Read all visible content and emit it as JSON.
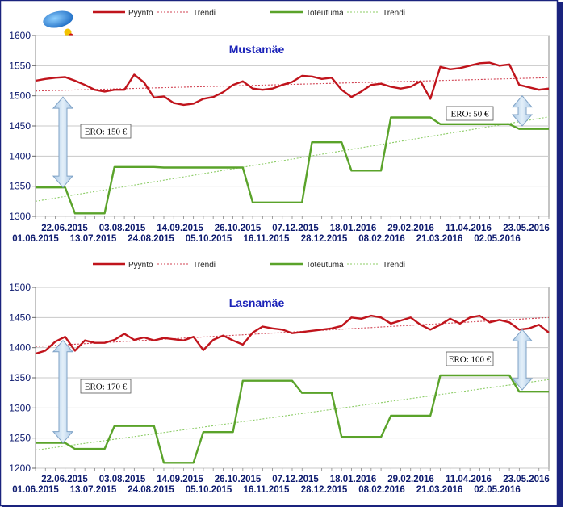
{
  "chart_data": [
    {
      "type": "line",
      "title": "Mustamäe",
      "ylim": [
        1300,
        1600
      ],
      "yticks": [
        "1300",
        "1350",
        "1400",
        "1450",
        "1500",
        "1550",
        "1600"
      ],
      "dates_upper": [
        "22.06.2015",
        "03.08.2015",
        "14.09.2015",
        "26.10.2015",
        "07.12.2015",
        "18.01.2016",
        "29.02.2016",
        "11.04.2016",
        "23.05.2016"
      ],
      "dates_lower": [
        "01.06.2015",
        "13.07.2015",
        "24.08.2015",
        "05.10.2015",
        "16.11.2015",
        "28.12.2015",
        "08.02.2016",
        "21.03.2016",
        "02.05.2016"
      ],
      "legend": {
        "pyynto": "Pyyntö",
        "trendi1": "Trendi",
        "toteutuma": "Toteutuma",
        "trendi2": "Trendi"
      },
      "colors": {
        "pyynto": "#c0141c",
        "trendi1": "#d04050",
        "toteutuma": "#5aa32a",
        "trendi2": "#8ccc66"
      },
      "series": [
        {
          "key": "pyynto",
          "values": [
            1525,
            1528,
            1530,
            1531,
            1525,
            1518,
            1510,
            1507,
            1510,
            1510,
            1535,
            1522,
            1497,
            1499,
            1488,
            1485,
            1487,
            1495,
            1498,
            1506,
            1518,
            1524,
            1512,
            1510,
            1512,
            1518,
            1523,
            1533,
            1532,
            1528,
            1530,
            1510,
            1498,
            1507,
            1518,
            1520,
            1515,
            1512,
            1515,
            1524,
            1495,
            1548,
            1544,
            1546,
            1550,
            1554,
            1555,
            1550,
            1552,
            1518,
            1514,
            1510,
            1512
          ]
        },
        {
          "key": "toteutuma",
          "values": [
            1348,
            1348,
            1348,
            1348,
            1305,
            1305,
            1305,
            1305,
            1382,
            1382,
            1382,
            1382,
            1382,
            1381,
            1381,
            1381,
            1381,
            1381,
            1381,
            1381,
            1381,
            1381,
            1323,
            1323,
            1323,
            1323,
            1323,
            1323,
            1423,
            1423,
            1423,
            1423,
            1376,
            1376,
            1376,
            1376,
            1464,
            1464,
            1464,
            1464,
            1464,
            1453,
            1453,
            1453,
            1453,
            1453,
            1453,
            1453,
            1453,
            1445,
            1445,
            1445,
            1445
          ]
        }
      ],
      "trends": [
        {
          "key": "trendi1",
          "start": 1508,
          "end": 1530
        },
        {
          "key": "trendi2",
          "start": 1325,
          "end": 1465
        }
      ],
      "annotations": [
        {
          "text": "ERO: 150 €",
          "top": 1498,
          "bottom": 1348,
          "at": 2
        },
        {
          "text": "ERO: 50 €",
          "top": 1500,
          "bottom": 1450,
          "at": 49
        }
      ]
    },
    {
      "type": "line",
      "title": "Lasnamäe",
      "ylim": [
        1200,
        1500
      ],
      "yticks": [
        "1200",
        "1250",
        "1300",
        "1350",
        "1400",
        "1450",
        "1500"
      ],
      "dates_upper": [
        "22.06.2015",
        "03.08.2015",
        "14.09.2015",
        "26.10.2015",
        "07.12.2015",
        "18.01.2016",
        "29.02.2016",
        "11.04.2016",
        "23.05.2016"
      ],
      "dates_lower": [
        "01.06.2015",
        "13.07.2015",
        "24.08.2015",
        "05.10.2015",
        "16.11.2015",
        "28.12.2015",
        "08.02.2016",
        "21.03.2016",
        "02.05.2016"
      ],
      "legend": {
        "pyynto": "Pyyntö",
        "trendi1": "Trendi",
        "toteutuma": "Toteutuma",
        "trendi2": "Trendi"
      },
      "colors": {
        "pyynto": "#c0141c",
        "trendi1": "#d04050",
        "toteutuma": "#5aa32a",
        "trendi2": "#8ccc66"
      },
      "series": [
        {
          "key": "pyynto",
          "values": [
            1390,
            1395,
            1410,
            1418,
            1395,
            1412,
            1408,
            1408,
            1413,
            1423,
            1413,
            1417,
            1412,
            1416,
            1414,
            1412,
            1418,
            1396,
            1413,
            1420,
            1412,
            1405,
            1425,
            1435,
            1432,
            1430,
            1424,
            1426,
            1428,
            1430,
            1432,
            1436,
            1450,
            1448,
            1453,
            1450,
            1440,
            1445,
            1450,
            1438,
            1430,
            1438,
            1448,
            1440,
            1450,
            1453,
            1442,
            1446,
            1442,
            1430,
            1432,
            1438,
            1425
          ]
        },
        {
          "key": "toteutuma",
          "values": [
            1242,
            1242,
            1242,
            1242,
            1232,
            1232,
            1232,
            1232,
            1270,
            1270,
            1270,
            1270,
            1270,
            1209,
            1209,
            1209,
            1209,
            1260,
            1260,
            1260,
            1260,
            1345,
            1345,
            1345,
            1345,
            1345,
            1345,
            1325,
            1325,
            1325,
            1325,
            1252,
            1252,
            1252,
            1252,
            1252,
            1287,
            1287,
            1287,
            1287,
            1287,
            1354,
            1354,
            1354,
            1354,
            1354,
            1354,
            1354,
            1354,
            1327,
            1327,
            1327,
            1327
          ]
        }
      ],
      "trends": [
        {
          "key": "trendi1",
          "start": 1402,
          "end": 1450
        },
        {
          "key": "trendi2",
          "start": 1230,
          "end": 1347
        }
      ],
      "annotations": [
        {
          "text": "ERO: 170 €",
          "top": 1412,
          "bottom": 1242,
          "at": 2
        },
        {
          "text": "ERO: 100 €",
          "top": 1430,
          "bottom": 1330,
          "at": 49
        }
      ]
    }
  ]
}
